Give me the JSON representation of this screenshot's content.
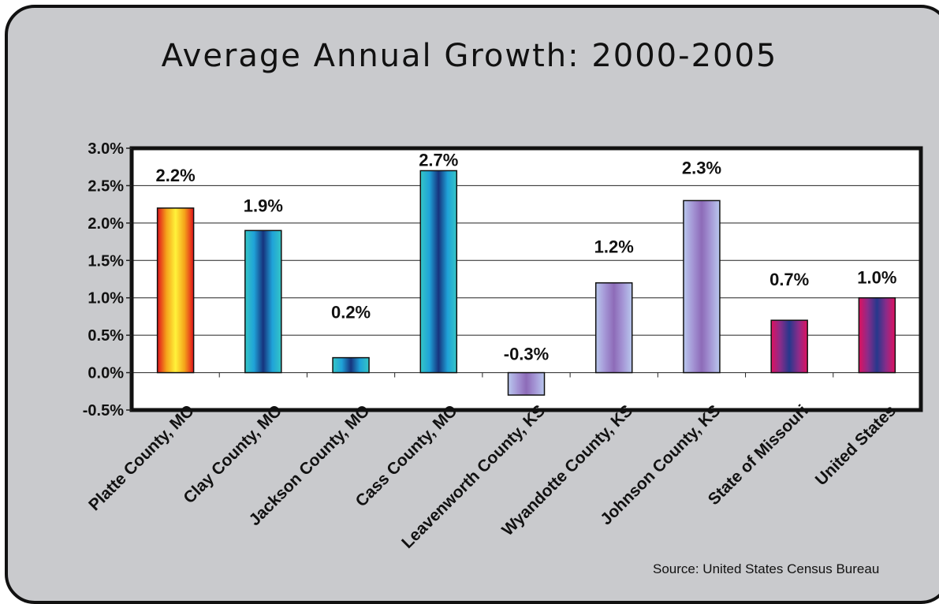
{
  "colors": {
    "panel_background": "#c9cacd",
    "plot_background": "#ffffff",
    "border": "#111111",
    "gradients": {
      "fire": [
        "#e0101c",
        "#f5a31a",
        "#fff23a",
        "#f5a31a",
        "#e0101c"
      ],
      "teal": [
        "#35c6c6",
        "#1fa2d8",
        "#16337d",
        "#1fa2d8",
        "#35c6c6"
      ],
      "lilac": [
        "#b9c8ee",
        "#a597d6",
        "#8d6bb8",
        "#a597d6",
        "#b9c8ee"
      ],
      "magenta": [
        "#e0115f",
        "#8a2c8a",
        "#26388c",
        "#8a2c8a",
        "#e0115f"
      ]
    }
  },
  "chart_data": {
    "type": "bar",
    "title": "Average Annual Growth: 2000-2005",
    "source": "Source: United States Census Bureau",
    "categories": [
      "Platte County, MO",
      "Clay County, MO",
      "Jackson County, MO",
      "Cass County, MO",
      "Leavenworth County, KS",
      "Wyandotte County, KS",
      "Johnson County, KS",
      "State of Missouri",
      "United States"
    ],
    "values": [
      2.2,
      1.9,
      0.2,
      2.7,
      -0.3,
      1.2,
      2.3,
      0.7,
      1.0
    ],
    "data_labels": [
      "2.2%",
      "1.9%",
      "0.2%",
      "2.7%",
      "-0.3%",
      "1.2%",
      "2.3%",
      "0.7%",
      "1.0%"
    ],
    "bar_gradients": [
      "fire",
      "teal",
      "teal",
      "teal",
      "lilac",
      "lilac",
      "lilac",
      "magenta",
      "magenta"
    ],
    "ylim": [
      -0.5,
      3.0
    ],
    "yticks": [
      -0.5,
      0.0,
      0.5,
      1.0,
      1.5,
      2.0,
      2.5,
      3.0
    ],
    "ytick_labels": [
      "-0.5%",
      "0.0%",
      "0.5%",
      "1.0%",
      "1.5%",
      "2.0%",
      "2.5%",
      "3.0%"
    ],
    "grid": true,
    "legend": "none"
  }
}
